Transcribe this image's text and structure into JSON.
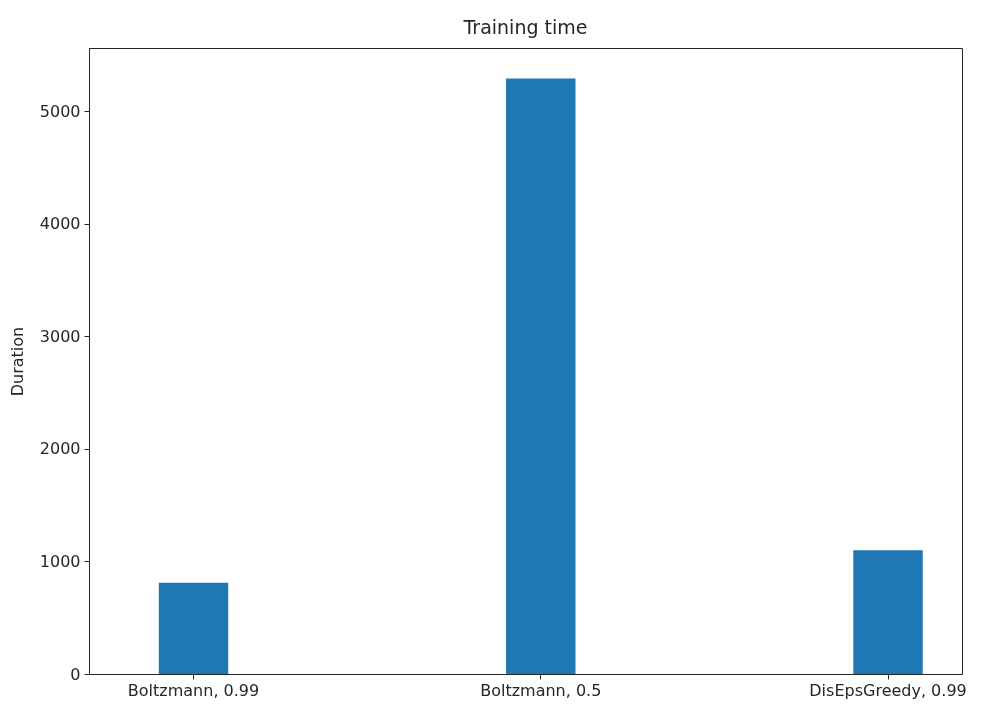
{
  "chart_data": {
    "type": "bar",
    "title": "Training time",
    "ylabel": "Duration",
    "categories": [
      "Boltzmann, 0.99",
      "Boltzmann, 0.5",
      "DisEpsGreedy, 0.99"
    ],
    "values": [
      810,
      5290,
      1100
    ],
    "color": "#1f77b4",
    "ylim": [
      0,
      5560
    ],
    "yticks": [
      0,
      1000,
      2000,
      3000,
      4000,
      5000
    ]
  }
}
